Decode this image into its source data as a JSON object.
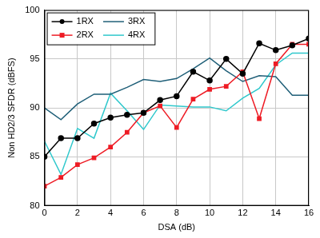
{
  "chart_data": {
    "type": "line",
    "x_label": "DSA (dB)",
    "y_label": "Non HD2/3 SFDR (dBFS)",
    "x": [
      0,
      1,
      2,
      3,
      4,
      5,
      6,
      7,
      8,
      9,
      10,
      11,
      12,
      13,
      14,
      15,
      16
    ],
    "series": [
      {
        "name": "1RX",
        "color": "#000000",
        "marker": "circle",
        "line_style": "solid",
        "values": [
          85,
          86.9,
          86.9,
          88.4,
          89,
          89.3,
          89.5,
          90.8,
          91.2,
          93.7,
          92.8,
          95,
          93.5,
          96.6,
          95.9,
          96.4,
          97.1
        ]
      },
      {
        "name": "2RX",
        "color": "#ee1c25",
        "marker": "square",
        "line_style": "solid",
        "values": [
          82,
          82.9,
          84.2,
          84.9,
          86,
          87.5,
          89.5,
          90.2,
          88,
          90.9,
          91.9,
          92.2,
          93.7,
          88.9,
          94.5,
          96.5,
          96.5
        ]
      },
      {
        "name": "3RX",
        "color": "#1f5f78",
        "marker": "none",
        "line_style": "solid",
        "values": [
          90,
          88.8,
          90.4,
          91.4,
          91.4,
          92.1,
          92.9,
          92.7,
          93,
          94,
          95.1,
          93.8,
          92.7,
          93.3,
          93.2,
          91.3,
          91.3
        ]
      },
      {
        "name": "4RX",
        "color": "#2fc8cc",
        "marker": "none",
        "line_style": "solid",
        "values": [
          86.6,
          83.2,
          87.9,
          86.9,
          91.5,
          89.7,
          87.8,
          90.3,
          90.2,
          90.1,
          90.1,
          89.7,
          91,
          92,
          94.4,
          95.6,
          95.6
        ]
      }
    ],
    "xlim": [
      0,
      16
    ],
    "xticks": [
      0,
      2,
      4,
      6,
      8,
      10,
      12,
      14,
      16
    ],
    "ylim": [
      80,
      100
    ],
    "yticks": [
      80,
      85,
      90,
      95,
      100
    ],
    "grid": true,
    "legend": "upper left"
  }
}
